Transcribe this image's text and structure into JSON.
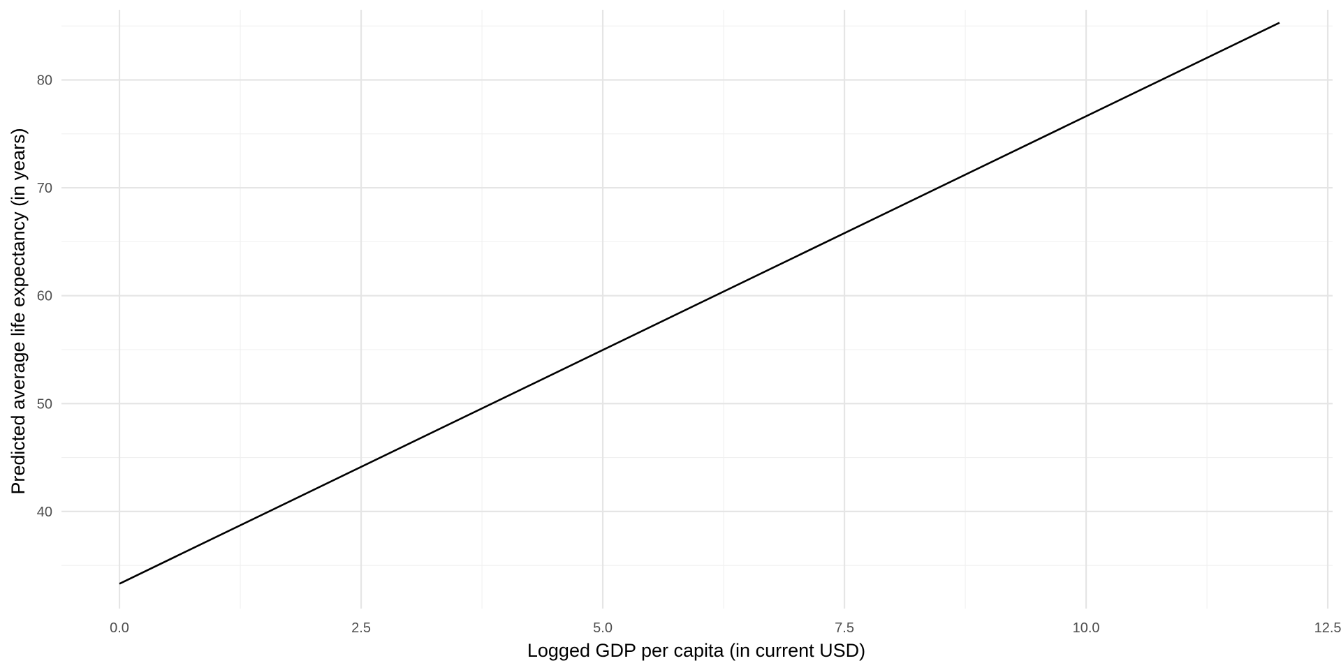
{
  "chart_data": {
    "type": "line",
    "title": "",
    "xlabel": "Logged GDP per capita (in current USD)",
    "ylabel": "Predicted average life expectancy (in years)",
    "xlim": [
      -0.6,
      12.55
    ],
    "ylim": [
      31,
      86.5
    ],
    "x_ticks": [
      0.0,
      2.5,
      5.0,
      7.5,
      10.0,
      12.5
    ],
    "x_tick_labels": [
      "0.0",
      "2.5",
      "5.0",
      "7.5",
      "10.0",
      "12.5"
    ],
    "x_minor_ticks": [
      1.25,
      3.75,
      6.25,
      8.75,
      11.25
    ],
    "y_ticks": [
      40,
      50,
      60,
      70,
      80
    ],
    "y_tick_labels": [
      "40",
      "50",
      "60",
      "70",
      "80"
    ],
    "y_minor_ticks": [
      35,
      45,
      55,
      65,
      75,
      85
    ],
    "grid": true,
    "legend": "none",
    "colors": {
      "line": "#000000",
      "grid_major": "#e5e5e5",
      "grid_minor": "#f0f0f0",
      "tick_text": "#4d4d4d"
    },
    "series": [
      {
        "x": [
          0.0,
          12.0
        ],
        "y": [
          33.3,
          85.3
        ]
      }
    ]
  }
}
